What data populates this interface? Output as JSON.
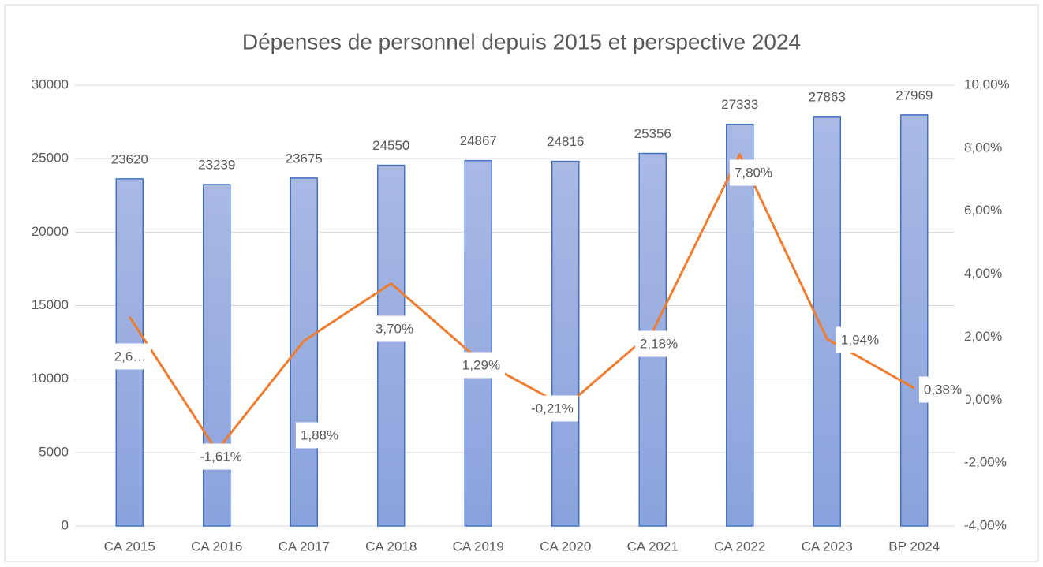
{
  "chart_data": {
    "type": "bar",
    "title": "Dépenses de personnel depuis 2015 et perspective 2024",
    "categories": [
      "CA 2015",
      "CA 2016",
      "CA 2017",
      "CA 2018",
      "CA 2019",
      "CA 2020",
      "CA 2021",
      "CA 2022",
      "CA 2023",
      "BP 2024"
    ],
    "series": [
      {
        "type": "bar",
        "color": "#4472c4",
        "values": [
          23620,
          23239,
          23675,
          24550,
          24867,
          24816,
          25356,
          27333,
          27863,
          27969
        ]
      },
      {
        "type": "line",
        "axis": "y2",
        "color": "#ed7d31",
        "values": [
          2.64,
          -1.61,
          1.88,
          3.7,
          1.29,
          -0.21,
          2.18,
          7.8,
          1.94,
          0.38
        ],
        "value_labels": [
          "2,6…",
          "-1,61%",
          "1,88%",
          "3,70%",
          "1,29%",
          "-0,21%",
          "2,18%",
          "7,80%",
          "1,94%",
          "0,38%"
        ]
      }
    ],
    "ylim": [
      0,
      30000
    ],
    "yticks": [
      0,
      5000,
      10000,
      15000,
      20000,
      25000,
      30000
    ],
    "y2lim": [
      -4,
      10
    ],
    "y2ticks": [
      {
        "value": -4,
        "label": "-4,00%"
      },
      {
        "value": -2,
        "label": "-2,00%"
      },
      {
        "value": 0,
        "label": "0,00%"
      },
      {
        "value": 2,
        "label": "2,00%"
      },
      {
        "value": 4,
        "label": "4,00%"
      },
      {
        "value": 6,
        "label": "6,00%"
      },
      {
        "value": 8,
        "label": "8,00%"
      },
      {
        "value": 10,
        "label": "10,00%"
      }
    ],
    "grid": true
  }
}
